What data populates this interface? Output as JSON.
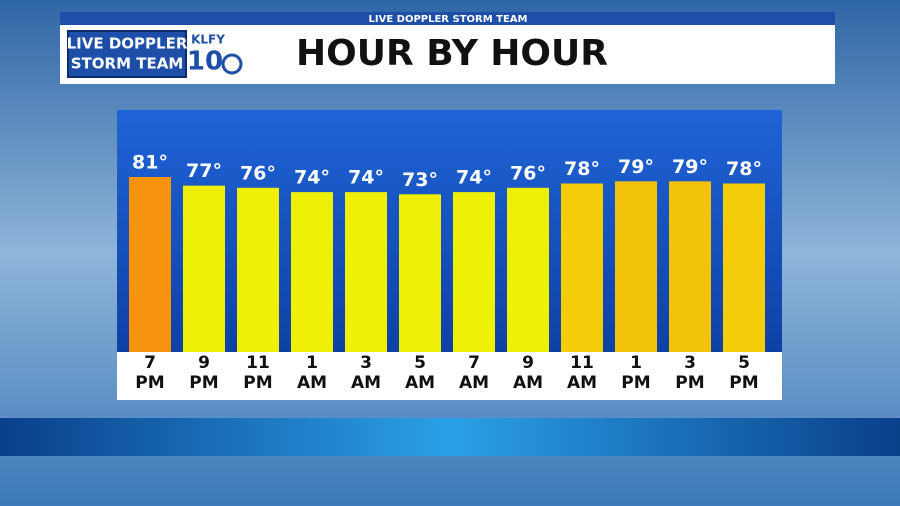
{
  "header": {
    "strap": "LIVE DOPPLER STORM TEAM",
    "logo_line1": "LIVE DOPPLER",
    "logo_line2": "STORM TEAM",
    "station": "KLFY",
    "channel": "10"
  },
  "chart_data": {
    "type": "bar",
    "title": "HOUR BY HOUR",
    "categories": [
      "7 PM",
      "9 PM",
      "11 PM",
      "1 AM",
      "3 AM",
      "5 AM",
      "7 AM",
      "9 AM",
      "11 AM",
      "1 PM",
      "3 PM",
      "5 PM"
    ],
    "values": [
      81,
      77,
      76,
      74,
      74,
      73,
      74,
      76,
      78,
      79,
      79,
      78
    ],
    "value_labels": [
      "81°",
      "77°",
      "76°",
      "74°",
      "74°",
      "73°",
      "74°",
      "76°",
      "78°",
      "79°",
      "79°",
      "78°"
    ],
    "colors": [
      "#f7930f",
      "#eef008",
      "#eef008",
      "#eef008",
      "#eef008",
      "#eef008",
      "#eef008",
      "#eef008",
      "#f3cc0a",
      "#f3c20a",
      "#f3c20a",
      "#f3cc0a"
    ]
  }
}
